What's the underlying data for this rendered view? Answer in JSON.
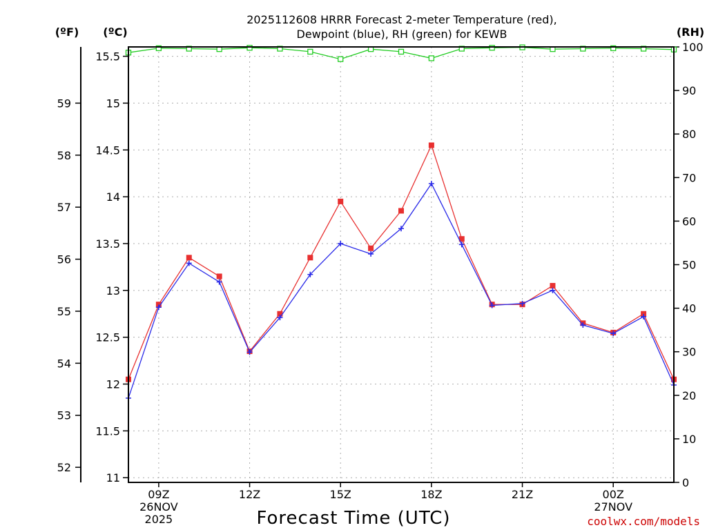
{
  "chart_data": {
    "type": "line",
    "title": [
      "2025112608 HRRR Forecast 2-meter Temperature (red),",
      "Dewpoint (blue), RH (green) for KEWB"
    ],
    "xlabel": "Forecast Time (UTC)",
    "credit": "coolwx.com/models",
    "axis_units": {
      "fahrenheit": "(ºF)",
      "celsius": "(ºC)",
      "rh": "(RH)"
    },
    "x_hours": [
      8,
      9,
      10,
      11,
      12,
      13,
      14,
      15,
      16,
      17,
      18,
      19,
      20,
      21,
      22,
      23,
      24,
      25,
      26
    ],
    "xlim": [
      8,
      26
    ],
    "x_ticks": [
      {
        "x": 9,
        "lines": [
          "09Z",
          "26NOV",
          "2025"
        ]
      },
      {
        "x": 12,
        "lines": [
          "12Z"
        ]
      },
      {
        "x": 15,
        "lines": [
          "15Z"
        ]
      },
      {
        "x": 18,
        "lines": [
          "18Z"
        ]
      },
      {
        "x": 21,
        "lines": [
          "21Z"
        ]
      },
      {
        "x": 24,
        "lines": [
          "00Z",
          "27NOV"
        ]
      }
    ],
    "ylim_c": [
      10.95,
      15.6
    ],
    "yticks_c": [
      "11",
      "11.5",
      "12",
      "12.5",
      "13",
      "13.5",
      "14",
      "14.5",
      "15",
      "15.5"
    ],
    "yticks_f": [
      "52",
      "53",
      "54",
      "55",
      "56",
      "57",
      "58",
      "59"
    ],
    "ylim_rh": [
      0,
      100
    ],
    "yticks_rh": [
      "0",
      "10",
      "20",
      "30",
      "40",
      "50",
      "60",
      "70",
      "80",
      "90",
      "100"
    ],
    "series": [
      {
        "name": "Temperature",
        "unit": "C",
        "color": "#e83030",
        "marker": "square",
        "values": [
          12.05,
          12.85,
          13.35,
          13.15,
          12.35,
          12.75,
          13.35,
          13.95,
          13.45,
          13.85,
          14.55,
          13.55,
          12.85,
          12.85,
          13.05,
          12.65,
          12.55,
          12.75,
          12.05
        ]
      },
      {
        "name": "Dewpoint",
        "unit": "C",
        "color": "#2a2ae8",
        "marker": "plus",
        "values": [
          11.85,
          12.82,
          13.29,
          13.09,
          12.34,
          12.71,
          13.17,
          13.5,
          13.39,
          13.66,
          14.14,
          13.49,
          12.84,
          12.86,
          13.0,
          12.63,
          12.54,
          12.72,
          11.99
        ]
      },
      {
        "name": "RH",
        "unit": "%",
        "color": "#22cc22",
        "marker": "open-square",
        "values": [
          98.7,
          99.7,
          99.6,
          99.5,
          99.8,
          99.6,
          98.9,
          97.2,
          99.5,
          98.9,
          97.4,
          99.6,
          99.8,
          99.9,
          99.5,
          99.6,
          99.7,
          99.6,
          99.4
        ]
      }
    ]
  }
}
